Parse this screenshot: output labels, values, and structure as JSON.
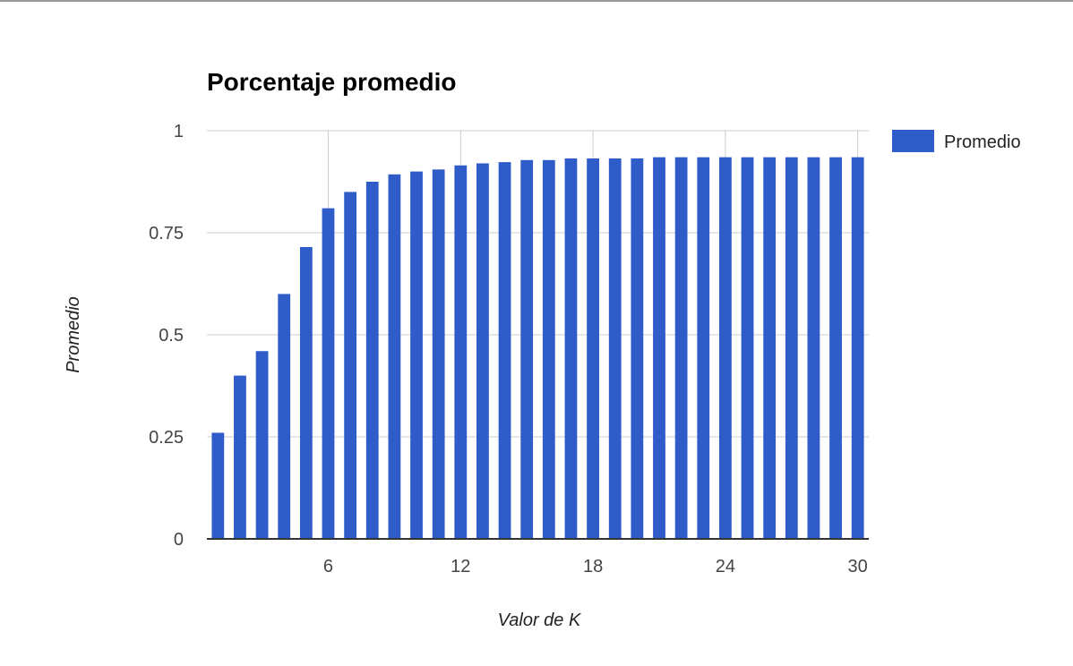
{
  "chart_data": {
    "type": "bar",
    "title": "Porcentaje promedio",
    "xlabel": "Valor de K",
    "ylabel": "Promedio",
    "x": [
      1,
      2,
      3,
      4,
      5,
      6,
      7,
      8,
      9,
      10,
      11,
      12,
      13,
      14,
      15,
      16,
      17,
      18,
      19,
      20,
      21,
      22,
      23,
      24,
      25,
      26,
      27,
      28,
      29,
      30
    ],
    "series": [
      {
        "name": "Promedio",
        "color": "#2f5cc9",
        "values": [
          0.26,
          0.4,
          0.46,
          0.6,
          0.715,
          0.81,
          0.85,
          0.875,
          0.893,
          0.9,
          0.905,
          0.915,
          0.92,
          0.923,
          0.928,
          0.928,
          0.932,
          0.932,
          0.932,
          0.932,
          0.935,
          0.935,
          0.935,
          0.935,
          0.935,
          0.935,
          0.935,
          0.935,
          0.935,
          0.935
        ]
      }
    ],
    "yticks": [
      "0",
      "0.25",
      "0.5",
      "0.75",
      "1"
    ],
    "xticks": [
      "6",
      "12",
      "18",
      "24",
      "30"
    ],
    "ylim": [
      0,
      1
    ],
    "xlim": [
      0.5,
      30.5
    ],
    "grid": true,
    "legend_position": "right"
  }
}
